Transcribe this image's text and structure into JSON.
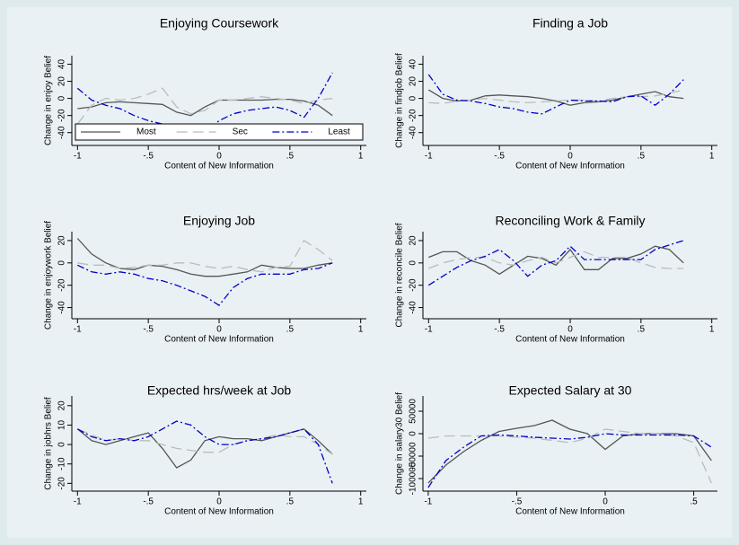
{
  "chart_data": [
    {
      "type": "line",
      "title": "Enjoying Coursework",
      "x_label": "Content of New Information",
      "y_label": "Change in enjoy Belief",
      "x": [
        -1,
        -0.9,
        -0.8,
        -0.7,
        -0.6,
        -0.5,
        -0.4,
        -0.3,
        -0.2,
        -0.1,
        0,
        0.1,
        0.2,
        0.3,
        0.4,
        0.5,
        0.6,
        0.7,
        0.8
      ],
      "xlim": [
        -1.04,
        1.04
      ],
      "ylim": [
        -55,
        50
      ],
      "xticks": [
        -1,
        {
          "value": -0.5,
          "label": "-.5"
        },
        0,
        {
          "value": 0.5,
          "label": ".5"
        },
        1
      ],
      "yticks": [
        -40,
        -20,
        0,
        20,
        40
      ],
      "legend": "bottom",
      "series": [
        {
          "name": "Most",
          "color": "#555555",
          "dash": "solid",
          "values": [
            -12,
            -10,
            -5,
            -4,
            -5,
            -6,
            -7,
            -16,
            -20,
            -10,
            -2,
            -2,
            -2,
            -2,
            -1,
            -1,
            -3,
            -8,
            -20
          ]
        },
        {
          "name": "Sec",
          "color": "#bbbbbb",
          "dash": "dashed",
          "values": [
            -30,
            -8,
            0,
            -2,
            0,
            5,
            12,
            -10,
            -18,
            -14,
            -2,
            -2,
            0,
            2,
            0,
            -2,
            -6,
            -2,
            0
          ]
        },
        {
          "name": "Least",
          "color": "#0000cc",
          "dash": "dashdot",
          "values": [
            12,
            -2,
            -8,
            -12,
            -20,
            -26,
            -30,
            -35,
            -40,
            -40,
            -26,
            -18,
            -14,
            -12,
            -10,
            -14,
            -22,
            0,
            30
          ]
        }
      ]
    },
    {
      "type": "line",
      "title": "Finding a Job",
      "x_label": "Content of New Information",
      "y_label": "Change in findjob Belief",
      "x": [
        -1,
        -0.9,
        -0.8,
        -0.7,
        -0.6,
        -0.5,
        -0.4,
        -0.3,
        -0.2,
        -0.1,
        0,
        0.1,
        0.2,
        0.3,
        0.4,
        0.5,
        0.6,
        0.7,
        0.8
      ],
      "xlim": [
        -1.04,
        1.04
      ],
      "ylim": [
        -55,
        50
      ],
      "xticks": [
        -1,
        {
          "value": -0.5,
          "label": "-.5"
        },
        0,
        {
          "value": 0.5,
          "label": ".5"
        },
        1
      ],
      "yticks": [
        -40,
        -20,
        0,
        20,
        40
      ],
      "series": [
        {
          "color": "#555555",
          "dash": "solid",
          "values": [
            10,
            0,
            -3,
            -2,
            3,
            4,
            3,
            2,
            0,
            -3,
            -8,
            -5,
            -4,
            -2,
            2,
            5,
            8,
            2,
            0
          ]
        },
        {
          "color": "#bbbbbb",
          "dash": "dashed",
          "values": [
            -5,
            -6,
            -3,
            -2,
            0,
            -2,
            -4,
            -5,
            -4,
            -3,
            -2,
            -2,
            -3,
            0,
            2,
            2,
            3,
            6,
            10
          ]
        },
        {
          "color": "#0000cc",
          "dash": "dashdot",
          "values": [
            28,
            5,
            -2,
            -3,
            -6,
            -10,
            -12,
            -16,
            -18,
            -10,
            -2,
            -3,
            -3,
            -4,
            2,
            3,
            -8,
            5,
            22
          ]
        }
      ]
    },
    {
      "type": "line",
      "title": "Enjoying Job",
      "x_label": "Content of New Information",
      "y_label": "Change in enjoywork Belief",
      "x": [
        -1,
        -0.9,
        -0.8,
        -0.7,
        -0.6,
        -0.5,
        -0.4,
        -0.3,
        -0.2,
        -0.1,
        0,
        0.1,
        0.2,
        0.3,
        0.4,
        0.5,
        0.6,
        0.7,
        0.8
      ],
      "xlim": [
        -1.04,
        1.04
      ],
      "ylim": [
        -50,
        28
      ],
      "xticks": [
        -1,
        {
          "value": -0.5,
          "label": "-.5"
        },
        0,
        {
          "value": 0.5,
          "label": ".5"
        },
        1
      ],
      "yticks": [
        -40,
        -20,
        0,
        20
      ],
      "series": [
        {
          "color": "#555555",
          "dash": "solid",
          "values": [
            22,
            8,
            0,
            -5,
            -6,
            -2,
            -3,
            -6,
            -10,
            -12,
            -12,
            -10,
            -8,
            -2,
            -4,
            -5,
            -5,
            -2,
            0
          ]
        },
        {
          "color": "#bbbbbb",
          "dash": "dashed",
          "values": [
            0,
            -2,
            -2,
            -5,
            -4,
            -2,
            -2,
            0,
            0,
            -3,
            -5,
            -3,
            -6,
            -8,
            -4,
            -3,
            20,
            12,
            2
          ]
        },
        {
          "color": "#0000cc",
          "dash": "dashdot",
          "values": [
            -2,
            -8,
            -10,
            -8,
            -10,
            -14,
            -16,
            -20,
            -25,
            -30,
            -38,
            -22,
            -14,
            -10,
            -10,
            -10,
            -6,
            -5,
            0
          ]
        }
      ]
    },
    {
      "type": "line",
      "title": "Reconciling Work & Family",
      "x_label": "Content of New Information",
      "y_label": "Change in reconcile Belief",
      "x": [
        -1,
        -0.9,
        -0.8,
        -0.7,
        -0.6,
        -0.5,
        -0.4,
        -0.3,
        -0.2,
        -0.1,
        0,
        0.1,
        0.2,
        0.3,
        0.4,
        0.5,
        0.6,
        0.7,
        0.8
      ],
      "xlim": [
        -1.04,
        1.04
      ],
      "ylim": [
        -50,
        28
      ],
      "xticks": [
        -1,
        {
          "value": -0.5,
          "label": "-.5"
        },
        0,
        {
          "value": 0.5,
          "label": ".5"
        },
        1
      ],
      "yticks": [
        -40,
        -20,
        0,
        20
      ],
      "series": [
        {
          "color": "#555555",
          "dash": "solid",
          "values": [
            5,
            10,
            10,
            2,
            -2,
            -10,
            -2,
            6,
            4,
            -2,
            12,
            -6,
            -6,
            4,
            4,
            8,
            15,
            12,
            0
          ]
        },
        {
          "color": "#bbbbbb",
          "dash": "dashed",
          "values": [
            -5,
            0,
            3,
            5,
            5,
            0,
            -2,
            2,
            5,
            0,
            5,
            10,
            5,
            5,
            5,
            0,
            -4,
            -5,
            -5
          ]
        },
        {
          "color": "#0000cc",
          "dash": "dashdot",
          "values": [
            -20,
            -12,
            -4,
            2,
            6,
            12,
            2,
            -12,
            -2,
            2,
            15,
            3,
            3,
            3,
            3,
            3,
            12,
            16,
            20
          ]
        }
      ]
    },
    {
      "type": "line",
      "title": "Expected hrs/week at Job",
      "x_label": "Content of New Information",
      "y_label": "Change in jobhrs Belief",
      "x": [
        -1,
        -0.9,
        -0.8,
        -0.7,
        -0.6,
        -0.5,
        -0.4,
        -0.3,
        -0.2,
        -0.1,
        0,
        0.1,
        0.2,
        0.3,
        0.4,
        0.5,
        0.6,
        0.7,
        0.8
      ],
      "xlim": [
        -1.04,
        1.04
      ],
      "ylim": [
        -24,
        25
      ],
      "xticks": [
        -1,
        {
          "value": -0.5,
          "label": "-.5"
        },
        0,
        {
          "value": 0.5,
          "label": ".5"
        },
        1
      ],
      "yticks": [
        -20,
        -10,
        0,
        10,
        20
      ],
      "series": [
        {
          "color": "#555555",
          "dash": "solid",
          "values": [
            8,
            2,
            0,
            2,
            4,
            6,
            -2,
            -12,
            -8,
            2,
            4,
            3,
            3,
            2,
            4,
            6,
            8,
            2,
            -5
          ]
        },
        {
          "color": "#bbbbbb",
          "dash": "dashed",
          "values": [
            8,
            5,
            2,
            3,
            2,
            2,
            0,
            -2,
            -3,
            -4,
            -4,
            0,
            2,
            3,
            5,
            4,
            4,
            0,
            -5
          ]
        },
        {
          "color": "#0000cc",
          "dash": "dashdot",
          "values": [
            8,
            4,
            2,
            3,
            2,
            4,
            8,
            12,
            10,
            4,
            0,
            0,
            2,
            3,
            4,
            6,
            8,
            0,
            -20
          ]
        }
      ]
    },
    {
      "type": "line",
      "title": "Expected Salary at 30",
      "x_label": "Content of New Information",
      "y_label": "Change in salary30 Belief",
      "x": [
        -1,
        -0.9,
        -0.8,
        -0.7,
        -0.6,
        -0.5,
        -0.4,
        -0.3,
        -0.2,
        -0.1,
        0,
        0.1,
        0.2,
        0.3,
        0.4,
        0.5,
        0.6
      ],
      "xlim": [
        -1.03,
        0.634
      ],
      "ylim": [
        -128000,
        84000
      ],
      "xticks": [
        -1,
        {
          "value": -0.5,
          "label": "-.5"
        },
        0,
        {
          "value": 0.5,
          "label": ".5"
        }
      ],
      "yticks": [
        -100000,
        -50000,
        0,
        50000
      ],
      "series": [
        {
          "color": "#555555",
          "dash": "solid",
          "values": [
            -110000,
            -70000,
            -40000,
            -15000,
            5000,
            12000,
            18000,
            30000,
            10000,
            0,
            -35000,
            -5000,
            0,
            0,
            0,
            -5000,
            -60000
          ]
        },
        {
          "color": "#bbbbbb",
          "dash": "dashed",
          "values": [
            -10000,
            -5000,
            -5000,
            -5000,
            -5000,
            -8000,
            -10000,
            -15000,
            -20000,
            -10000,
            10000,
            5000,
            0,
            0,
            -5000,
            -20000,
            -110000
          ]
        },
        {
          "color": "#0000cc",
          "dash": "dashdot",
          "values": [
            -120000,
            -60000,
            -30000,
            -5000,
            -3000,
            -5000,
            -8000,
            -10000,
            -12000,
            -8000,
            0,
            -3000,
            -3000,
            -3000,
            -3000,
            -5000,
            -30000
          ]
        }
      ]
    }
  ]
}
